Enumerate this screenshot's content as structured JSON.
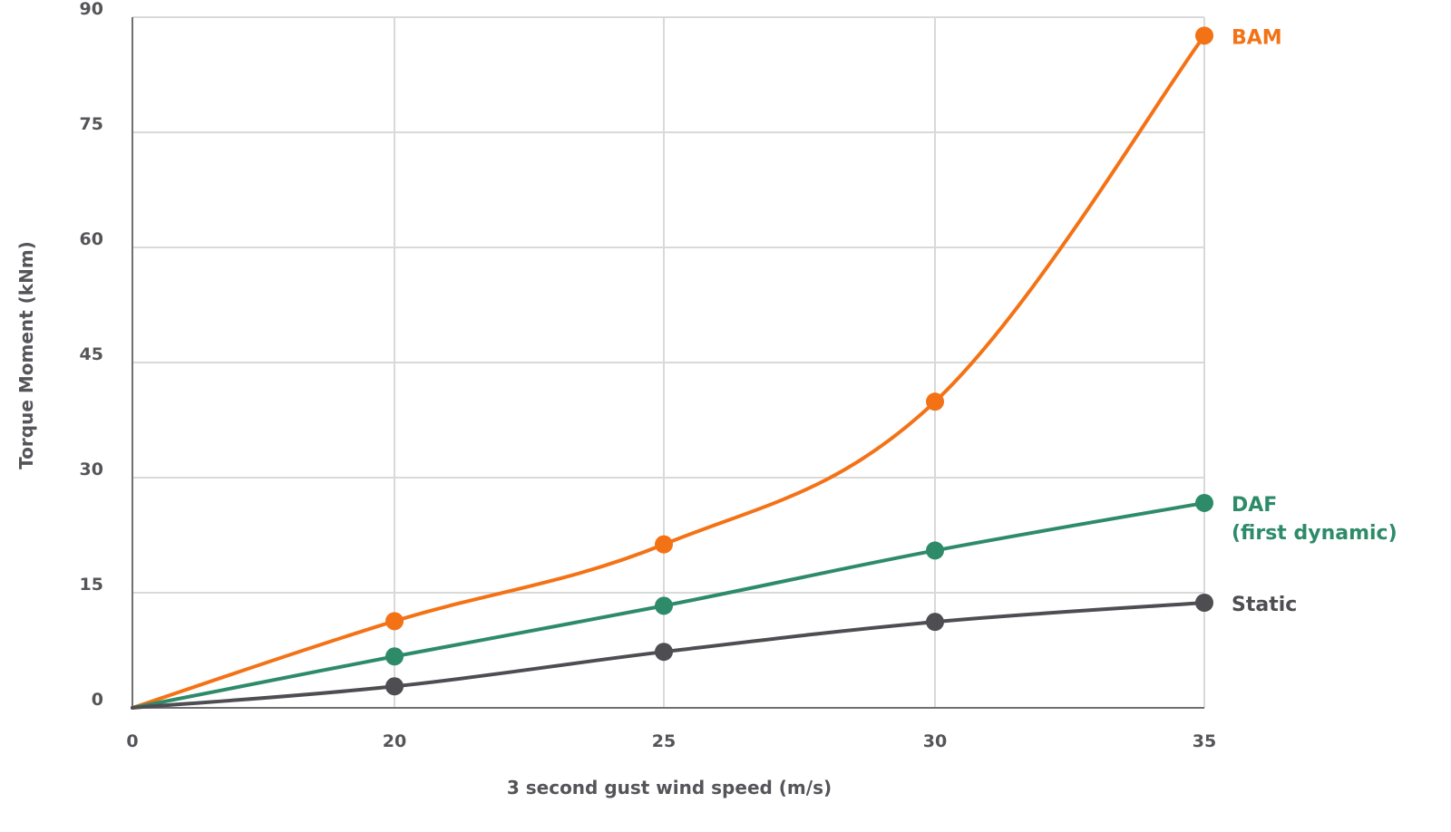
{
  "chart_data": {
    "type": "line",
    "xlabel": "3 second gust wind speed (m/s)",
    "ylabel": "Torque Moment (kNm)",
    "x": [
      0,
      20,
      25,
      30,
      35
    ],
    "x_ticks": [
      "0",
      "20",
      "25",
      "30",
      "35"
    ],
    "y_ticks": [
      "0",
      "15",
      "30",
      "45",
      "60",
      "75",
      "90"
    ],
    "ylim": [
      0,
      90
    ],
    "grid": true,
    "legend": "inline labels at right end of each series",
    "series": [
      {
        "name": "BAM",
        "label_lines": [
          "BAM"
        ],
        "color": "#f47216",
        "values": [
          0,
          11.3,
          21.3,
          39.9,
          87.6
        ]
      },
      {
        "name": "DAF (first dynamic)",
        "label_lines": [
          "DAF",
          "(first dynamic)"
        ],
        "color": "#2e8b6a",
        "values": [
          0,
          6.7,
          13.3,
          20.5,
          26.7
        ]
      },
      {
        "name": "Static",
        "label_lines": [
          "Static"
        ],
        "color": "#4d4d52",
        "values": [
          0,
          2.8,
          7.3,
          11.2,
          13.7
        ]
      }
    ]
  }
}
